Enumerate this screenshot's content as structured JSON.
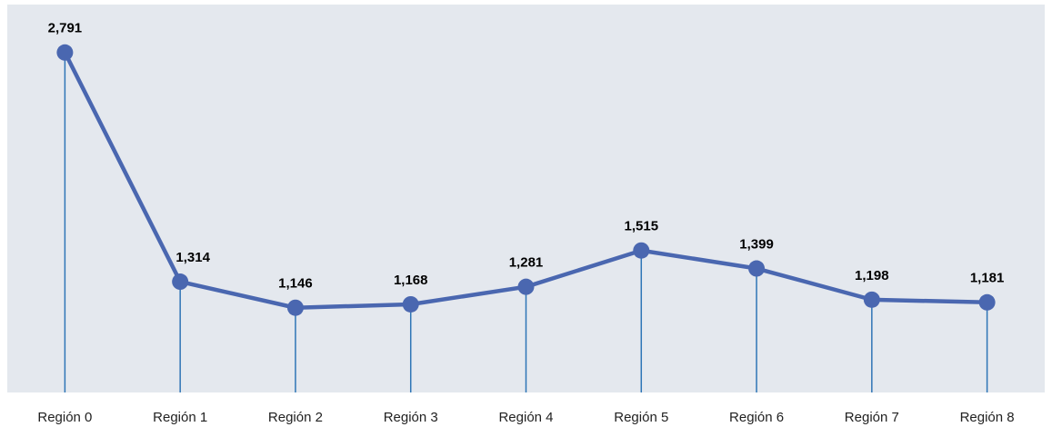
{
  "chart_data": {
    "type": "line",
    "categories": [
      "Región 0",
      "Región 1",
      "Región 2",
      "Región 3",
      "Región 4",
      "Región 5",
      "Región 6",
      "Región 7",
      "Región 8"
    ],
    "series": [
      {
        "name": "Región",
        "color": "#4a67b0",
        "values": [
          2791,
          1314,
          1146,
          1168,
          1281,
          1515,
          1399,
          1198,
          1181
        ],
        "value_labels": [
          "2,791",
          "1,314",
          "1,146",
          "1,168",
          "1,281",
          "1,515",
          "1,399",
          "1,198",
          "1,181"
        ]
      }
    ],
    "ylim": [
      600,
      3100
    ],
    "drop_line_color": "#2e75b6",
    "grid": false
  }
}
